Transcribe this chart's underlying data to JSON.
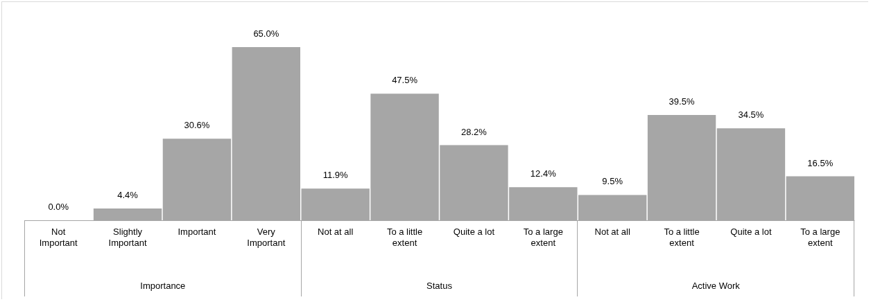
{
  "chart_data": {
    "type": "bar",
    "categories": [
      "Not Important",
      "Slightly Important",
      "Important",
      "Very Important",
      "Not at all",
      "To a little extent",
      "Quite a lot",
      "To a large extent",
      "Not at all",
      "To a little extent",
      "Quite a lot",
      "To a large extent"
    ],
    "values": [
      0.0,
      4.4,
      30.6,
      65.0,
      11.9,
      47.5,
      28.2,
      12.4,
      9.5,
      39.5,
      34.5,
      16.5
    ],
    "value_labels": [
      "0.0%",
      "4.4%",
      "30.6%",
      "65.0%",
      "11.9%",
      "47.5%",
      "28.2%",
      "12.4%",
      "9.5%",
      "39.5%",
      "34.5%",
      "16.5%"
    ],
    "color": "#a6a6a6",
    "annotations": [
      "Importance",
      "Status",
      "Active Work"
    ]
  }
}
